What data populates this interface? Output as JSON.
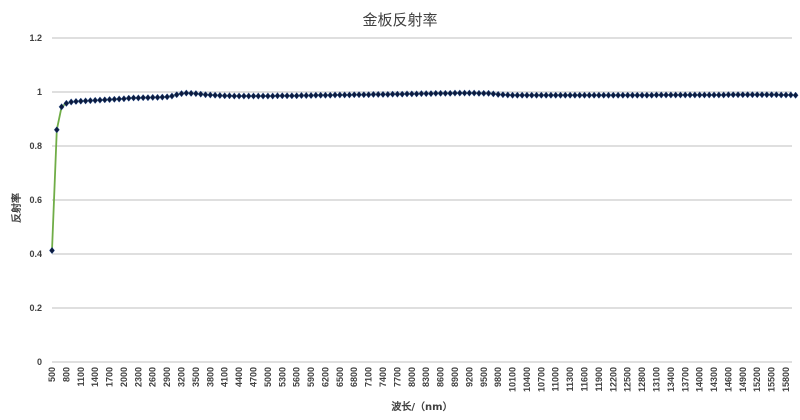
{
  "chart_data": {
    "type": "line",
    "title": "金板反射率",
    "xlabel": "波长/（nm）",
    "ylabel": "反射率",
    "ylim": [
      0,
      1.2
    ],
    "yticks": [
      "0",
      "0.2",
      "0.4",
      "0.6",
      "0.8",
      "1",
      "1.2"
    ],
    "grid": true,
    "legend": "none",
    "line_color": "#70AD47",
    "marker_color": "#0D1B3E",
    "xtick_labels": [
      "500",
      "800",
      "1100",
      "1400",
      "1700",
      "2000",
      "2300",
      "2600",
      "2900",
      "3200",
      "3500",
      "3800",
      "4100",
      "4400",
      "4700",
      "5000",
      "5300",
      "5600",
      "5900",
      "6200",
      "6500",
      "6800",
      "7100",
      "7400",
      "7700",
      "8000",
      "8300",
      "8600",
      "8900",
      "9200",
      "9500",
      "9800",
      "10100",
      "10400",
      "10700",
      "11000",
      "11300",
      "11600",
      "11900",
      "12200",
      "12500",
      "12800",
      "13100",
      "13400",
      "13700",
      "14000",
      "14300",
      "14600",
      "14900",
      "15200",
      "15500",
      "15800"
    ],
    "x_start": 500,
    "x_step": 100,
    "series": [
      {
        "name": "反射率",
        "values": [
          0.413,
          0.86,
          0.945,
          0.958,
          0.963,
          0.965,
          0.966,
          0.967,
          0.968,
          0.969,
          0.97,
          0.971,
          0.972,
          0.973,
          0.974,
          0.975,
          0.977,
          0.978,
          0.978,
          0.979,
          0.979,
          0.98,
          0.98,
          0.981,
          0.982,
          0.985,
          0.99,
          0.994,
          0.996,
          0.995,
          0.994,
          0.992,
          0.99,
          0.989,
          0.988,
          0.987,
          0.986,
          0.986,
          0.985,
          0.985,
          0.985,
          0.985,
          0.985,
          0.985,
          0.985,
          0.985,
          0.985,
          0.986,
          0.986,
          0.986,
          0.986,
          0.986,
          0.987,
          0.987,
          0.987,
          0.988,
          0.988,
          0.988,
          0.988,
          0.989,
          0.989,
          0.989,
          0.989,
          0.99,
          0.99,
          0.99,
          0.99,
          0.991,
          0.991,
          0.991,
          0.991,
          0.992,
          0.992,
          0.992,
          0.993,
          0.993,
          0.993,
          0.994,
          0.994,
          0.994,
          0.995,
          0.995,
          0.995,
          0.995,
          0.996,
          0.996,
          0.996,
          0.996,
          0.996,
          0.995,
          0.995,
          0.995,
          0.993,
          0.991,
          0.99,
          0.989,
          0.988,
          0.988,
          0.988,
          0.988,
          0.988,
          0.988,
          0.988,
          0.988,
          0.988,
          0.988,
          0.988,
          0.988,
          0.988,
          0.988,
          0.988,
          0.988,
          0.988,
          0.988,
          0.988,
          0.988,
          0.988,
          0.988,
          0.988,
          0.988,
          0.988,
          0.988,
          0.988,
          0.988,
          0.988,
          0.988,
          0.989,
          0.989,
          0.989,
          0.989,
          0.989,
          0.989,
          0.989,
          0.989,
          0.989,
          0.989,
          0.989,
          0.989,
          0.989,
          0.989,
          0.989,
          0.99,
          0.99,
          0.99,
          0.99,
          0.99,
          0.99,
          0.99,
          0.99,
          0.99,
          0.99,
          0.99,
          0.989,
          0.989,
          0.989,
          0.988
        ]
      }
    ]
  }
}
